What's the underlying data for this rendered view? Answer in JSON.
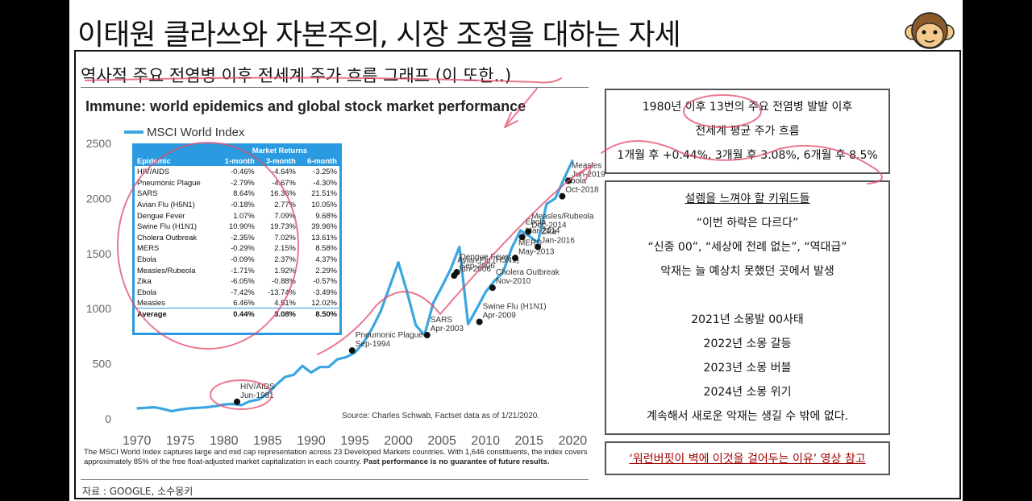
{
  "header": {
    "title": "이태원 클라쓰와 자본주의, 시장 조정을 대하는 자세"
  },
  "subtitle": "역사적 주요 전염병 이후 전세계 주가 흐름 그래프 (이 또한..)",
  "chart_data": {
    "type": "line",
    "title": "Immune: world epidemics and global stock market performance",
    "series_name": "MSCI World Index",
    "x_ticks": [
      "1970",
      "1975",
      "1980",
      "1985",
      "1990",
      "1995",
      "2000",
      "2005",
      "2010",
      "2015",
      "2020"
    ],
    "y_ticks": [
      "0",
      "500",
      "1000",
      "1500",
      "2000",
      "2500"
    ],
    "xlim": [
      1968,
      2022
    ],
    "ylim": [
      0,
      2500
    ],
    "x": [
      1970,
      1971,
      1972,
      1973,
      1974,
      1975,
      1976,
      1977,
      1978,
      1979,
      1980,
      1981,
      1982,
      1983,
      1984,
      1985,
      1986,
      1987,
      1988,
      1989,
      1990,
      1991,
      1992,
      1993,
      1994,
      1995,
      1996,
      1997,
      1998,
      1999,
      2000,
      2001,
      2002,
      2003,
      2004,
      2005,
      2006,
      2007,
      2008,
      2009,
      2010,
      2011,
      2012,
      2013,
      2014,
      2015,
      2016,
      2017,
      2018,
      2019,
      2020
    ],
    "y": [
      95,
      100,
      105,
      90,
      70,
      85,
      95,
      100,
      105,
      115,
      130,
      135,
      125,
      160,
      175,
      230,
      310,
      380,
      400,
      480,
      420,
      470,
      470,
      540,
      560,
      600,
      690,
      820,
      980,
      1200,
      1420,
      1150,
      850,
      760,
      1050,
      1200,
      1360,
      1560,
      860,
      1000,
      1150,
      1250,
      1330,
      1550,
      1710,
      1660,
      1600,
      1950,
      2000,
      2180,
      2350
    ],
    "events": [
      {
        "label": "HIV/AIDS",
        "date": "Jun-1981",
        "x": 1981.5,
        "y": 155
      },
      {
        "label": "Pneumonic Plague",
        "date": "Sep-1994",
        "x": 1994.7,
        "y": 620
      },
      {
        "label": "SARS",
        "date": "Apr-2003",
        "x": 2003.3,
        "y": 760
      },
      {
        "label": "Dengue Fever",
        "date": "Sep-2006",
        "x": 2006.7,
        "y": 1330
      },
      {
        "label": "Avian Flu (H5N1)",
        "date": "Jun-2006",
        "x": 2006.4,
        "y": 1300
      },
      {
        "label": "Swine Flu (H1N1)",
        "date": "Apr-2009",
        "x": 2009.3,
        "y": 880
      },
      {
        "label": "Cholera Outbreak",
        "date": "Nov-2010",
        "x": 2010.8,
        "y": 1190
      },
      {
        "label": "MERS",
        "date": "May-2013",
        "x": 2013.4,
        "y": 1460
      },
      {
        "label": "Ebola",
        "date": "Mar-2014",
        "x": 2014.2,
        "y": 1650
      },
      {
        "label": "Measles/Rubeola",
        "date": "Dec-2014",
        "x": 2014.9,
        "y": 1700
      },
      {
        "label": "Zika",
        "date": "Jan-2016",
        "x": 2016.0,
        "y": 1560
      },
      {
        "label": "Measles",
        "date": "Jun-2019",
        "x": 2019.5,
        "y": 2160
      },
      {
        "label": "Ebola",
        "date": "Oct-2018",
        "x": 2018.8,
        "y": 2020
      }
    ],
    "source": "Source: Charles Schwab, Factset data as of 1/21/2020."
  },
  "table": {
    "caption": "Market Returns",
    "headers": [
      "Epidemic",
      "1-month",
      "3-month",
      "6-month"
    ],
    "rows": [
      [
        "HIV/AIDS",
        "-0.46%",
        "-4.64%",
        "-3.25%"
      ],
      [
        "Pneumonic Plague",
        "-2.79%",
        "-4.67%",
        "-4.30%"
      ],
      [
        "SARS",
        "8.64%",
        "16.36%",
        "21.51%"
      ],
      [
        "Avian Flu (H5N1)",
        "-0.18%",
        "2.77%",
        "10.05%"
      ],
      [
        "Dengue Fever",
        "1.07%",
        "7.09%",
        "9.68%"
      ],
      [
        "Swine Flu (H1N1)",
        "10.90%",
        "19.73%",
        "39.96%"
      ],
      [
        "Cholera Outbreak",
        "-2.35%",
        "7.02%",
        "13.61%"
      ],
      [
        "MERS",
        "-0.29%",
        "2.15%",
        "8.58%"
      ],
      [
        "Ebola",
        "-0.09%",
        "2.37%",
        "4.37%"
      ],
      [
        "Measles/Rubeola",
        "-1.71%",
        "1.92%",
        "2.29%"
      ],
      [
        "Zika",
        "-6.05%",
        "-0.88%",
        "-0.57%"
      ],
      [
        "Ebola",
        "-7.42%",
        "-13.74%",
        "-3.49%"
      ],
      [
        "Measles",
        "6.46%",
        "4.51%",
        "12.02%"
      ],
      [
        "Average",
        "0.44%",
        "3.08%",
        "8.50%"
      ]
    ]
  },
  "footnote": {
    "text": "The MSCI World Index captures large and mid cap representation across 23 Developed Markets countries. With 1,646 constituents, the index covers approximately 85% of the free float-adjusted market capitalization in each country.",
    "bold": "Past performance is no guarantee of future results."
  },
  "source_credit": "자료 : GOOGLE, 소수몽키",
  "box1": {
    "line1": "1980년 이후 13번의 주요 전염병 발발 이후",
    "line2": "전세계 평균 주가 흐름",
    "line3": "1개월 후 +0.44%, 3개월 후 3.08%, 6개월 후 8.5%"
  },
  "box2": {
    "keyword_title": "설렘을 느껴야 할 키워드들",
    "q1": "“이번 하락은 다르다”",
    "q2": "“신종 00”, “세상에 전례 없는”, “역대급”",
    "q3": "악재는 늘 예상치 못했던 곳에서 발생",
    "y2021": "2021년 소몽발 00사태",
    "y2022": "2022년 소몽 갈등",
    "y2023": "2023년 소몽 버블",
    "y2024": "2024년 소몽 위기",
    "conclusion": "계속해서 새로운 악재는 생길 수 밖에 없다."
  },
  "box3": {
    "reference": "‘워런버핏이 벽에 이것을 걸어두는 이유’ 영상 참고"
  },
  "colors": {
    "line": "#3aa6e0",
    "table_bg": "#2a9be0",
    "annotation": "#e24b6a"
  }
}
